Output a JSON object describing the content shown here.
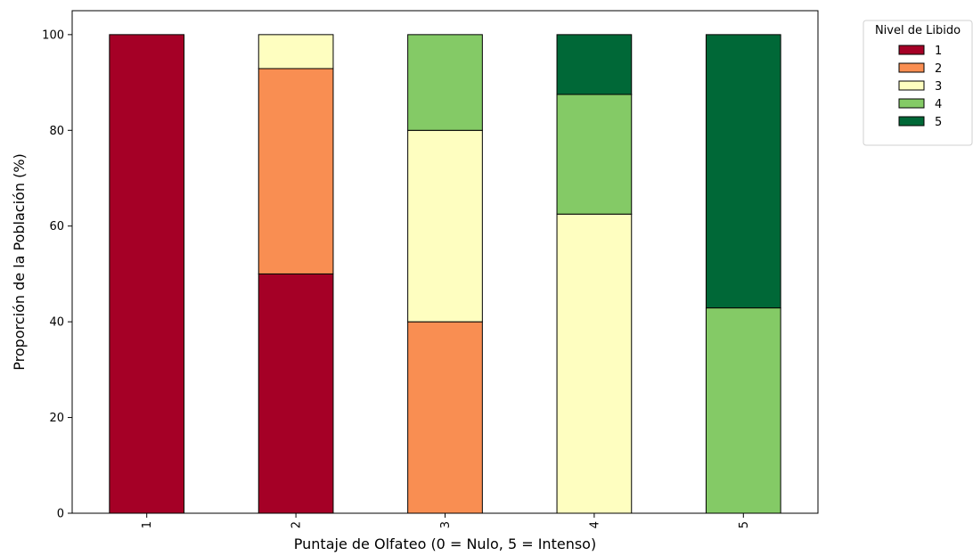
{
  "chart_data": {
    "type": "bar",
    "stacked": true,
    "title": "",
    "xlabel": "Puntaje de Olfateo (0 = Nulo, 5 = Intenso)",
    "ylabel": "Proporción de la Población (%)",
    "categories": [
      "1",
      "2",
      "3",
      "4",
      "5"
    ],
    "ylim": [
      0,
      105
    ],
    "yticks": [
      0,
      20,
      40,
      60,
      80,
      100
    ],
    "grid": false,
    "legend": {
      "title": "Nivel de Libido",
      "placement": "outside-top-right"
    },
    "series": [
      {
        "name": "1",
        "color": "#a50026",
        "values": [
          100,
          50,
          0,
          0,
          0
        ]
      },
      {
        "name": "2",
        "color": "#f98e52",
        "values": [
          0,
          42.9,
          40,
          0,
          0
        ]
      },
      {
        "name": "3",
        "color": "#fefec0",
        "values": [
          0,
          7.1,
          40,
          62.5,
          0
        ]
      },
      {
        "name": "4",
        "color": "#84ca66",
        "values": [
          0,
          0,
          20,
          25,
          42.9
        ]
      },
      {
        "name": "5",
        "color": "#006837",
        "values": [
          0,
          0,
          0,
          12.5,
          57.1
        ]
      }
    ]
  }
}
